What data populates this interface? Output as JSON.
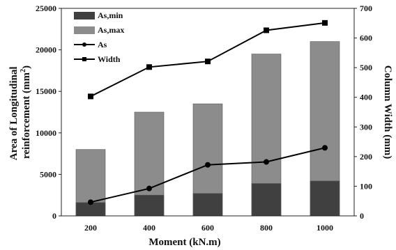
{
  "chart_data": {
    "type": "bar",
    "xlabel": "Moment (kN.m)",
    "ylabel_left": [
      "Area of Longitudinal",
      "reinforcement (mm",
      "2",
      ")"
    ],
    "ylabel_right": "Column Width (mm)",
    "categories": [
      "200",
      "400",
      "600",
      "800",
      "1000"
    ],
    "left_ylim": [
      0,
      25000
    ],
    "left_ticks": [
      "0",
      "5000",
      "10000",
      "15000",
      "20000",
      "25000"
    ],
    "right_ylim": [
      0,
      700
    ],
    "right_ticks": [
      "0",
      "100",
      "200",
      "300",
      "400",
      "500",
      "600",
      "700"
    ],
    "series": [
      {
        "name": "As,min",
        "type": "bar",
        "axis": "left",
        "color": "#404040",
        "values": [
          1600,
          2500,
          2700,
          3900,
          4200
        ]
      },
      {
        "name": "As,max",
        "type": "bar",
        "axis": "left",
        "color": "#8c8c8c",
        "values": [
          8000,
          12500,
          13500,
          19500,
          21000
        ]
      },
      {
        "name": "As",
        "type": "line",
        "axis": "left",
        "marker": "circle",
        "color": "#000000",
        "values": [
          1650,
          3300,
          6150,
          6500,
          8200
        ]
      },
      {
        "name": "Width",
        "type": "line",
        "axis": "right",
        "marker": "square",
        "color": "#000000",
        "values": [
          403,
          502,
          521,
          626,
          651
        ]
      }
    ],
    "legend_position": "top-left",
    "grid": false
  }
}
